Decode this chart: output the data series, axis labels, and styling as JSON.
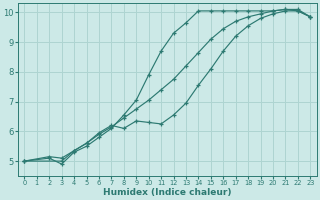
{
  "xlabel": "Humidex (Indice chaleur)",
  "xlim": [
    -0.5,
    23.5
  ],
  "ylim": [
    4.5,
    10.3
  ],
  "yticks": [
    5,
    6,
    7,
    8,
    9,
    10
  ],
  "xticks": [
    0,
    1,
    2,
    3,
    4,
    5,
    6,
    7,
    8,
    9,
    10,
    11,
    12,
    13,
    14,
    15,
    16,
    17,
    18,
    19,
    20,
    21,
    22,
    23
  ],
  "bg_color": "#cce9e7",
  "grid_color": "#aed4d1",
  "line_color": "#2d7a72",
  "series": [
    {
      "x": [
        0,
        2,
        3,
        4,
        5,
        6,
        7,
        8,
        9,
        10,
        11,
        12,
        13,
        14,
        15,
        16,
        17,
        18,
        19,
        20,
        21,
        22,
        23
      ],
      "y": [
        5.0,
        5.1,
        4.9,
        5.3,
        5.5,
        5.8,
        6.1,
        6.55,
        7.05,
        7.9,
        8.7,
        9.3,
        9.65,
        10.05,
        10.05,
        10.05,
        10.05,
        10.05,
        10.05,
        10.05,
        10.1,
        10.1,
        9.85
      ]
    },
    {
      "x": [
        0,
        2,
        3,
        4,
        5,
        6,
        7,
        8,
        9,
        10,
        11,
        12,
        13,
        14,
        15,
        16,
        17,
        18,
        19,
        20,
        21,
        22,
        23
      ],
      "y": [
        5.0,
        5.15,
        5.1,
        5.35,
        5.6,
        5.9,
        6.15,
        6.45,
        6.75,
        7.05,
        7.4,
        7.75,
        8.2,
        8.65,
        9.1,
        9.45,
        9.7,
        9.85,
        9.95,
        10.05,
        10.1,
        10.05,
        9.85
      ]
    },
    {
      "x": [
        0,
        3,
        4,
        5,
        6,
        7,
        8,
        9,
        10,
        11,
        12,
        13,
        14,
        15,
        16,
        17,
        18,
        19,
        20,
        21,
        22,
        23
      ],
      "y": [
        5.0,
        5.0,
        5.35,
        5.6,
        5.95,
        6.2,
        6.1,
        6.35,
        6.3,
        6.25,
        6.55,
        6.95,
        7.55,
        8.1,
        8.7,
        9.2,
        9.55,
        9.8,
        9.95,
        10.05,
        10.05,
        9.85
      ]
    }
  ]
}
